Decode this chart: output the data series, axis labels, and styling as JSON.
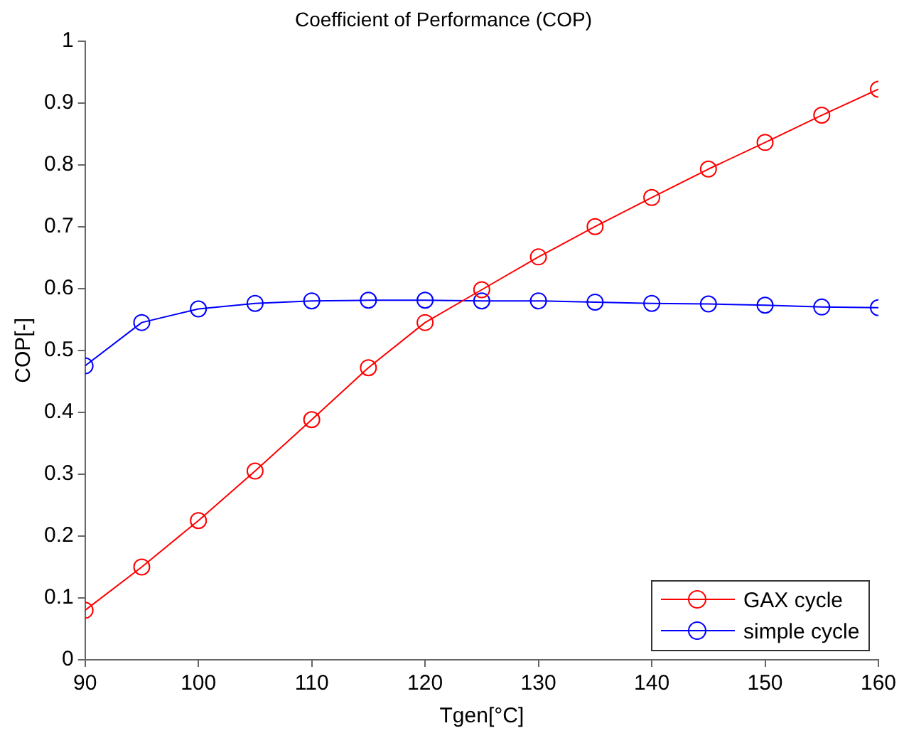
{
  "chart_data": {
    "type": "line",
    "title": "Coefficient of Performance (COP)",
    "xlabel": "Tgen[°C]",
    "ylabel": "COP[-]",
    "x": [
      90,
      95,
      100,
      105,
      110,
      115,
      120,
      125,
      130,
      135,
      140,
      145,
      150,
      155,
      160
    ],
    "series": [
      {
        "name": "GAX cycle",
        "color": "#ff0000",
        "values": [
          0.08,
          0.15,
          0.225,
          0.305,
          0.388,
          0.472,
          0.545,
          0.598,
          0.651,
          0.7,
          0.747,
          0.793,
          0.836,
          0.88,
          0.922
        ]
      },
      {
        "name": "simple cycle",
        "color": "#0000ff",
        "values": [
          0.475,
          0.545,
          0.567,
          0.576,
          0.58,
          0.581,
          0.581,
          0.58,
          0.58,
          0.578,
          0.576,
          0.575,
          0.573,
          0.57,
          0.569
        ]
      }
    ],
    "xlim": [
      90,
      160
    ],
    "xticks": [
      90,
      100,
      110,
      120,
      130,
      140,
      150,
      160
    ],
    "ylim": [
      0,
      1
    ],
    "yticks": [
      0,
      0.1,
      0.2,
      0.3,
      0.4,
      0.5,
      0.6,
      0.7,
      0.8,
      0.9,
      1
    ],
    "grid": false,
    "legend": "bottom right",
    "marker": "circle",
    "line_style": "solid"
  }
}
